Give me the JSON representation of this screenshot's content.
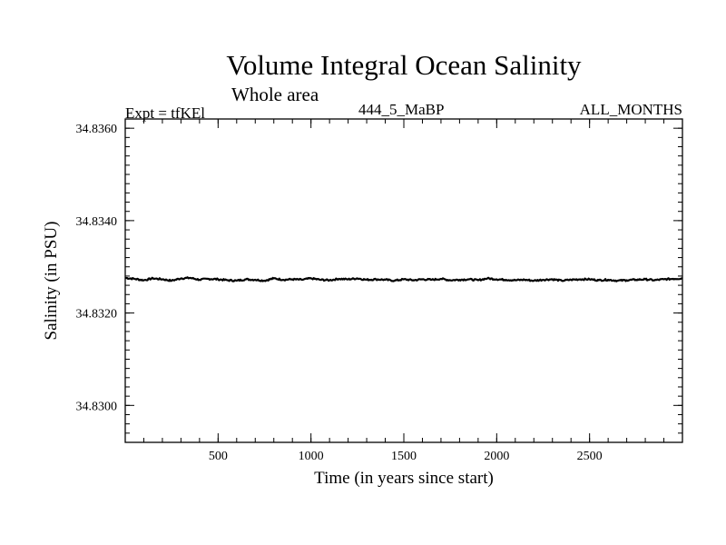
{
  "header": {
    "title": "Volume Integral Ocean Salinity",
    "subtitle": "Whole area",
    "expt_label": "Expt = tfKEl",
    "run_label": "444_5_MaBP",
    "period_label": "ALL_MONTHS"
  },
  "chart_data": {
    "type": "line",
    "xlabel": "Time (in years since start)",
    "ylabel": "Salinity (in PSU)",
    "xlim": [
      0,
      3000
    ],
    "ylim": [
      34.8292,
      34.8362
    ],
    "x_ticks": [
      {
        "value": 500,
        "label": "500"
      },
      {
        "value": 1000,
        "label": "1000"
      },
      {
        "value": 1500,
        "label": "1500"
      },
      {
        "value": 2000,
        "label": "2000"
      },
      {
        "value": 2500,
        "label": "2500"
      }
    ],
    "y_ticks": [
      {
        "value": 34.83,
        "label": "34.8300"
      },
      {
        "value": 34.832,
        "label": "34.8320"
      },
      {
        "value": 34.834,
        "label": "34.8340"
      },
      {
        "value": 34.836,
        "label": "34.8360"
      }
    ],
    "x_minor_step": 100,
    "y_minor_step": 0.0002,
    "series": [
      {
        "color": "#000000",
        "x": [
          0,
          50,
          100,
          150,
          200,
          250,
          300,
          350,
          400,
          450,
          500,
          550,
          600,
          650,
          700,
          750,
          800,
          850,
          900,
          950,
          1000,
          1050,
          1100,
          1150,
          1200,
          1250,
          1300,
          1350,
          1400,
          1450,
          1500,
          1550,
          1600,
          1650,
          1700,
          1750,
          1800,
          1850,
          1900,
          1950,
          2000,
          2050,
          2100,
          2150,
          2200,
          2250,
          2300,
          2350,
          2400,
          2450,
          2500,
          2550,
          2600,
          2650,
          2700,
          2750,
          2800,
          2850,
          2900,
          2950,
          3000
        ],
        "values": [
          34.83276,
          34.83274,
          34.83271,
          34.83275,
          34.83273,
          34.8327,
          34.83275,
          34.83276,
          34.83272,
          34.83274,
          34.83273,
          34.83271,
          34.8327,
          34.83273,
          34.83272,
          34.8327,
          34.83275,
          34.83272,
          34.83273,
          34.83272,
          34.83275,
          34.83272,
          34.83271,
          34.83274,
          34.83273,
          34.83275,
          34.83272,
          34.83273,
          34.83272,
          34.8327,
          34.83273,
          34.83271,
          34.83273,
          34.83272,
          34.83274,
          34.83271,
          34.83272,
          34.83273,
          34.83271,
          34.83275,
          34.83273,
          34.83272,
          34.83271,
          34.83272,
          34.8327,
          34.83272,
          34.83273,
          34.8327,
          34.83272,
          34.83273,
          34.83273,
          34.83271,
          34.83272,
          34.8327,
          34.83271,
          34.83272,
          34.83273,
          34.83271,
          34.83273,
          34.83274,
          34.83275
        ]
      }
    ],
    "grid": false,
    "legend": "none"
  }
}
